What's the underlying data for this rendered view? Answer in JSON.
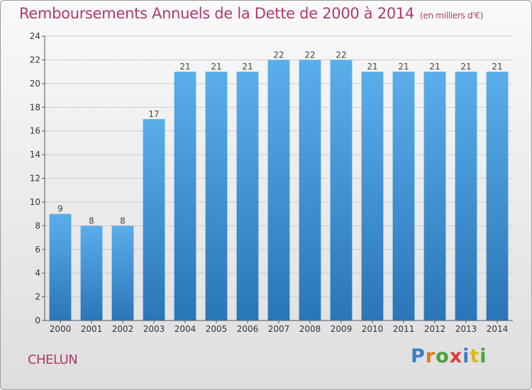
{
  "chart_data": {
    "type": "bar",
    "title": "Remboursements Annuels de la Dette de 2000 à 2014",
    "subtitle": "(en milliers d'€)",
    "categories": [
      "2000",
      "2001",
      "2002",
      "2003",
      "2004",
      "2005",
      "2006",
      "2007",
      "2008",
      "2009",
      "2010",
      "2011",
      "2012",
      "2013",
      "2014"
    ],
    "values": [
      9,
      8,
      8,
      17,
      21,
      21,
      21,
      22,
      22,
      22,
      21,
      21,
      21,
      21,
      21
    ],
    "ylim": [
      0,
      24
    ],
    "yticks": [
      0,
      2,
      4,
      6,
      8,
      10,
      12,
      14,
      16,
      18,
      20,
      22,
      24
    ],
    "grid": true,
    "bar_color": "#3d8fd6",
    "title_color": "#b03a6a"
  },
  "footer": {
    "city": "CHELUN",
    "logo_letters": [
      "P",
      "r",
      "o",
      "x",
      "i",
      "t",
      "i"
    ]
  }
}
